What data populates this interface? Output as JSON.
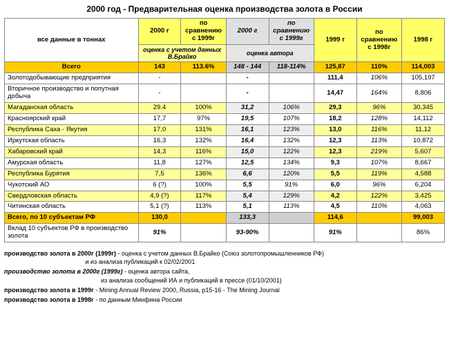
{
  "title": "2000 год   -   Предварительная оценка производства золота в России",
  "header": {
    "rowlabel": "все  данные  в тоннах",
    "y2000_1": "2000 г",
    "cmp1999_1": "по сравнению с 1999г",
    "y2000_2": "2000 г",
    "cmp1999_2": "по сравнению с 1999г",
    "y1999": "1999 г",
    "cmp1998": "по сравнению с 1998г",
    "y1998": "1998 г",
    "sub_left": "оценка с учетом данных В.Брайко",
    "sub_mid": "оценка автора"
  },
  "total": {
    "label": "Всего",
    "c1": "143",
    "c2": "113.6%",
    "c3": "148 - 144",
    "c4": "118-114%",
    "c5": "125,87",
    "c6": "110%",
    "c7": "114,003"
  },
  "rows": [
    {
      "label": "Золотодобывающие предприятия",
      "c1": "-",
      "c2": "",
      "c3": "-",
      "c4": "",
      "c5": "111,4",
      "c6": "106%",
      "c7": "105,197",
      "odd": false
    },
    {
      "label": "Вторичное производство и попутная добыча",
      "c1": "-",
      "c2": "",
      "c3": "-",
      "c4": "",
      "c5": "14,47",
      "c6": "164%",
      "c7": "8,806",
      "odd": false
    },
    {
      "label": "Магаданская область",
      "c1": "29.4",
      "c2": "100%",
      "c3": "31,2",
      "c4": "106%",
      "c5": "29,3",
      "c6": "96%",
      "c7": "30,345",
      "odd": true
    },
    {
      "label": "Красноярский край",
      "c1": "17,7",
      "c2": "97%",
      "c3": "19,5",
      "c4": "107%",
      "c5": "18,2",
      "c6": "128%",
      "c7": "14,112",
      "odd": false
    },
    {
      "label": "Республика Саха -  Якутия",
      "c1": "17,0",
      "c2": "131%",
      "c3": "16,1",
      "c4": "123%",
      "c5": "13,0",
      "c6": "116%",
      "c7": "11,12",
      "odd": true
    },
    {
      "label": "Иркутская область",
      "c1": "16,3",
      "c2": "132%",
      "c3": "16,4",
      "c4": "132%",
      "c5": "12,3",
      "c6": "113%",
      "c7": "10,872",
      "odd": false
    },
    {
      "label": "Хабаровский край",
      "c1": "14,3",
      "c2": "116%",
      "c3": "15,0",
      "c4": "122%",
      "c5": "12,3",
      "c6": "219%",
      "c7": "5,607",
      "odd": true
    },
    {
      "label": "Амурская область",
      "c1": "11,8",
      "c2": "127%",
      "c3": "12,5",
      "c4": "134%",
      "c5": "9,3",
      "c6": "107%",
      "c7": "8,667",
      "odd": false
    },
    {
      "label": "Республика Бурятия",
      "c1": "7,5",
      "c2": "136%",
      "c3": "6,6",
      "c4": "120%",
      "c5": "5,5",
      "c6": "119%",
      "c7": "4,588",
      "odd": true
    },
    {
      "label": "Чукотский АО",
      "c1": "6 (?)",
      "c2": "100%",
      "c3": "5,5",
      "c4": "91%",
      "c5": "6,0",
      "c6": "96%",
      "c7": "6,204",
      "odd": false
    },
    {
      "label": "Свердловская область",
      "c1": "4,9 (?)",
      "c2": "117%",
      "c3": "5,4",
      "c4": "129%",
      "c5": "4,2",
      "c6": "122%",
      "c7": "3,425",
      "odd": true
    },
    {
      "label": "Читинская область",
      "c1": "5,1 (?)",
      "c2": "113%",
      "c3": "5,1",
      "c4": "113%",
      "c5": "4,5",
      "c6": "110%",
      "c7": "4,063",
      "odd": false
    }
  ],
  "subtotal": {
    "label": "Всего, по 10 субъектам РФ",
    "c1": "130,0",
    "c2": "",
    "c3": "133,3",
    "c4": "",
    "c5": "114,6",
    "c6": "",
    "c7": "99,003"
  },
  "share": {
    "label": "Вклад 10 субъектов РФ в производство золота",
    "c1": "91%",
    "c2": "",
    "c3": "93-90%",
    "c4": "",
    "c5": "91%",
    "c6": "",
    "c7": "86%"
  },
  "footnotes": {
    "f1k": "производство золота в 2000г (1999г)",
    "f1a": " - оценка с учетом данных В.Брайко  (Союз золотопромышленников РФ)",
    "f1b": "и  из  анализа публикаций  к  02/02/2001",
    "f2k": "производство золота в 2000г (1999г)",
    "f2a": " - оценка автора сайта,",
    "f2b": "из анализа сообщений ИА и публикаций в прессе  (01/10/2001)",
    "f3k": "производство золота в 1999г",
    "f3a": " -  Mining Annual Review 2000,  Russia, p15-16 - The  Mining Journal",
    "f4k": "производство золота в 1998г",
    "f4a": " - по данным Минфина России"
  },
  "colwidths": [
    "172",
    "55",
    "58",
    "55",
    "58",
    "55",
    "58",
    "55"
  ],
  "colors": {
    "deep_yellow": "#ffcc00",
    "light_yellow": "#ffff99",
    "header_yellow": "#ffff66",
    "gray_header": "#e0e0e0",
    "gray_cell": "#eeeeee",
    "border": "#888888",
    "bg": "#ffffff"
  }
}
